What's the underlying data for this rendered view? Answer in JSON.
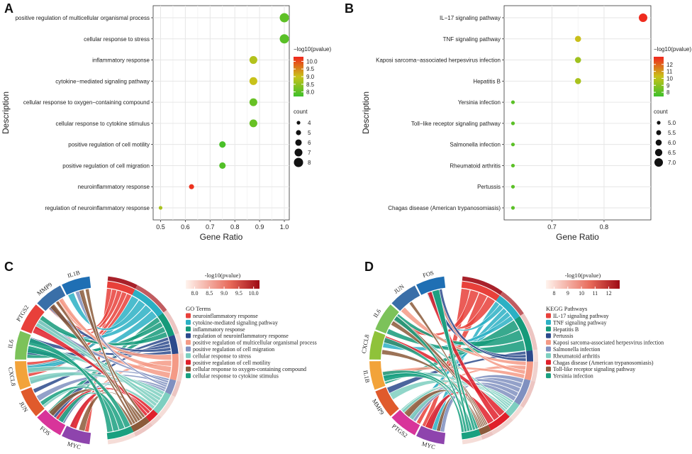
{
  "chart_data": [
    {
      "panel": "A",
      "type": "scatter",
      "subtype": "dot-plot",
      "xlabel": "Gene Ratio",
      "ylabel": "Description",
      "xlim": [
        0.47,
        1.02
      ],
      "xticks": [
        0.5,
        0.6,
        0.7,
        0.8,
        0.9,
        1.0
      ],
      "xtick_labels": [
        "0.5",
        "0.6",
        "0.7",
        "0.8",
        "0.9",
        "1.0"
      ],
      "categories": [
        "positive regulation of multicellular organismal process",
        "cellular response to stress",
        "inflammatory response",
        "cytokine−mediated signaling pathway",
        "cellular response to oxygen−containing compound",
        "cellular response to cytokine stimulus",
        "positive regulation of cell motility",
        "positive regulation of cell migration",
        "neuroinflammatory response",
        "regulation of neuroinflammatory response"
      ],
      "gene_ratio": [
        1.0,
        1.0,
        0.875,
        0.875,
        0.875,
        0.875,
        0.75,
        0.75,
        0.625,
        0.5
      ],
      "count": [
        8,
        8,
        7,
        7,
        7,
        7,
        6,
        6,
        5,
        4
      ],
      "neg_log10_pvalue": [
        8.0,
        7.95,
        8.8,
        9.0,
        8.1,
        8.1,
        7.8,
        7.9,
        10.2,
        8.7
      ],
      "color_legend": {
        "title": "−log10(pvalue)",
        "min": 7.7,
        "max": 10.3,
        "ticks": [
          10.0,
          9.5,
          9.0,
          8.5,
          8.0
        ],
        "tick_labels": [
          "10.0",
          "9.5",
          "9.0",
          "8.5",
          "8.0"
        ]
      },
      "size_legend": {
        "title": "count",
        "values": [
          4,
          5,
          6,
          7,
          8
        ],
        "labels": [
          "4",
          "5",
          "6",
          "7",
          "8"
        ]
      }
    },
    {
      "panel": "B",
      "type": "scatter",
      "subtype": "dot-plot",
      "xlabel": "Gene Ratio",
      "ylabel": "Description",
      "xlim": [
        0.608,
        0.89
      ],
      "xticks": [
        0.7,
        0.8
      ],
      "xtick_labels": [
        "0.7",
        "0.8"
      ],
      "categories": [
        "IL−17 signaling pathway",
        "TNF signaling pathway",
        "Kaposi sarcoma−associated herpesvirus infection",
        "Hepatitis B",
        "Yersinia infection",
        "Toll−like receptor signaling pathway",
        "Salmonella infection",
        "Rheumatoid arthritis",
        "Pertussis",
        "Chagas disease (American trypanosomiasis)"
      ],
      "gene_ratio": [
        0.875,
        0.75,
        0.75,
        0.75,
        0.625,
        0.625,
        0.625,
        0.625,
        0.625,
        0.625
      ],
      "count": [
        7,
        6,
        6,
        6,
        5,
        5,
        5,
        5,
        5,
        5
      ],
      "neg_log10_pvalue": [
        13.0,
        10.3,
        9.4,
        9.6,
        8.0,
        8.0,
        8.0,
        8.0,
        8.0,
        8.0
      ],
      "color_legend": {
        "title": "−log10(pvalue)",
        "min": 7.4,
        "max": 13.1,
        "ticks": [
          12,
          11,
          10,
          9,
          8
        ],
        "tick_labels": [
          "12",
          "11",
          "10",
          "9",
          "8"
        ]
      },
      "size_legend": {
        "title": "count",
        "values": [
          5.0,
          5.5,
          6.0,
          6.5,
          7.0
        ],
        "labels": [
          "5.0",
          "5.5",
          "6.0",
          "6.5",
          "7.0"
        ]
      }
    },
    {
      "panel": "C",
      "type": "chord",
      "genes": [
        "IL1B",
        "MMP9",
        "PTGS2",
        "IL6",
        "CXCL8",
        "JUN",
        "FOS",
        "MYC"
      ],
      "gene_colors": [
        "#1f6fb4",
        "#3a6fa8",
        "#e8403a",
        "#7cc25a",
        "#f2a33a",
        "#e05a2c",
        "#d8349a",
        "#8e44ad"
      ],
      "color_legend": {
        "title": "-log10(pvalue)",
        "min": 7.7,
        "max": 10.2,
        "ticks": [
          8.0,
          8.5,
          9.0,
          9.5,
          10.0
        ],
        "tick_labels": [
          "8.0",
          "8.5",
          "9.0",
          "9.5",
          "10.0"
        ]
      },
      "terms_title": "GO Terms",
      "terms": [
        "neuroinflammatory response",
        "cytokine-mediated signaling pathway",
        "inflammatory response",
        "regulation of neuroinflammatory response",
        "positive regulation of multicellular organismal process",
        "positive regulation of cell migration",
        "cellular response to stress",
        "positive regulation of cell motility",
        "cellular response to oxygen-containing compound",
        "cellular response to cytokine stimulus"
      ],
      "term_colors": [
        "#e8403a",
        "#2bb0c4",
        "#159a7a",
        "#2c4a8c",
        "#f49a86",
        "#8090c0",
        "#7ecfc0",
        "#e0202a",
        "#8b5a3a",
        "#1aa080"
      ]
    },
    {
      "panel": "D",
      "type": "chord",
      "genes": [
        "FOS",
        "JUN",
        "IL6",
        "CXCL8",
        "IL1B",
        "MMP9",
        "PTGS2",
        "MYC"
      ],
      "gene_colors": [
        "#1f6fb4",
        "#3a6fa8",
        "#7cc25a",
        "#8fc23a",
        "#f2a33a",
        "#e05a2c",
        "#d8349a",
        "#8e44ad"
      ],
      "color_legend": {
        "title": "-log10(pvalue)",
        "min": 7.4,
        "max": 12.8,
        "ticks": [
          8,
          9,
          10,
          11,
          12
        ],
        "tick_labels": [
          "8",
          "9",
          "10",
          "11",
          "12"
        ]
      },
      "terms_title": "KEGG Pathways",
      "terms": [
        "IL-17 signaling pathway",
        "TNF signaling pathway",
        "Hepatitis B",
        "Pertussis",
        "Kaposi sarcoma-associated herpesvirus infection",
        "Salmonella infection",
        "Rheumatoid arthritis",
        "Chagas disease (American trypanosomiasis)",
        "Toll-like receptor signaling pathway",
        "Yersinia infection"
      ],
      "term_colors": [
        "#e8403a",
        "#2bb0c4",
        "#159a7a",
        "#2c4a8c",
        "#f49a86",
        "#8090c0",
        "#7ecfc0",
        "#e0202a",
        "#8b5a3a",
        "#1aa080"
      ]
    }
  ],
  "panels": {
    "A": {
      "letter": "A"
    },
    "B": {
      "letter": "B"
    },
    "C": {
      "letter": "C"
    },
    "D": {
      "letter": "D"
    }
  },
  "colors": {
    "grid": "#ebebeb",
    "text": "#222222",
    "heat_low": "#fff4ee",
    "heat_high": "#9e0a14"
  }
}
